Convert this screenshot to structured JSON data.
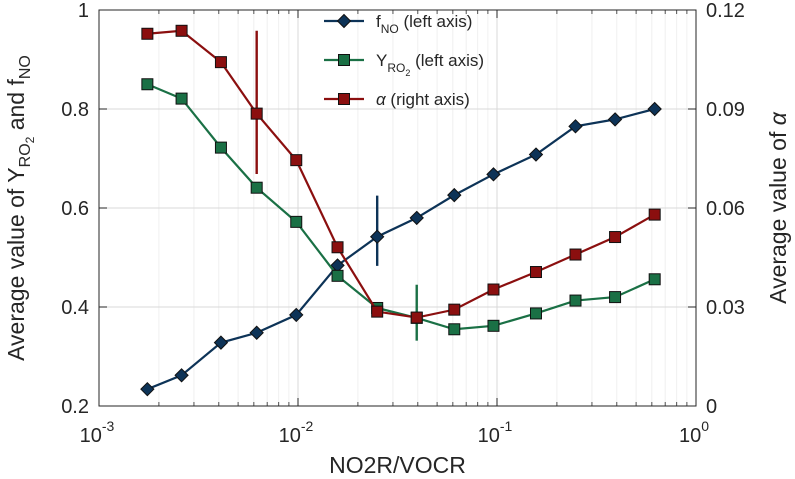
{
  "chart_data": {
    "type": "line",
    "xlabel": "NO2R/VOCR",
    "xscale": "log",
    "xlim": [
      0.001,
      1
    ],
    "x_ticks": [
      {
        "base": "10",
        "exp": "-3"
      },
      {
        "base": "10",
        "exp": "-2"
      },
      {
        "base": "10",
        "exp": "-1"
      },
      {
        "base": "10",
        "exp": "0"
      }
    ],
    "left_axis": {
      "label_parts": {
        "prefix": "Average value of Y",
        "sub1": "RO",
        "sub2": "2",
        "mid": " and f",
        "sub3": "NO"
      },
      "ylim": [
        0.2,
        1.0
      ],
      "ticks": [
        "0.2",
        "0.4",
        "0.6",
        "0.8",
        "1"
      ]
    },
    "right_axis": {
      "label_prefix": "Average value of ",
      "label_symbol": "α",
      "ylim": [
        0,
        0.12
      ],
      "ticks": [
        "0",
        "0.03",
        "0.06",
        "0.09",
        "0.12"
      ]
    },
    "grid": true,
    "legend_position": "top-center",
    "x": [
      0.00175,
      0.0026,
      0.0041,
      0.0062,
      0.0098,
      0.0158,
      0.025,
      0.0395,
      0.061,
      0.096,
      0.157,
      0.248,
      0.392,
      0.62
    ],
    "series": [
      {
        "name": "f_NO (left axis)",
        "legend": {
          "main": "f",
          "sub": "NO",
          "suffix": " (left axis)"
        },
        "axis": "left",
        "color": "#0d3357",
        "marker": "diamond",
        "values": [
          0.234,
          0.262,
          0.328,
          0.348,
          0.384,
          0.484,
          0.542,
          0.58,
          0.626,
          0.668,
          0.708,
          0.765,
          0.779,
          0.8
        ],
        "error_bars": [
          {
            "index": 6,
            "low": 0.483,
            "high": 0.625
          }
        ]
      },
      {
        "name": "Y_RO2 (left axis)",
        "legend": {
          "main": "Y",
          "sub": "RO",
          "sub2": "2",
          "suffix": " (left axis)"
        },
        "axis": "left",
        "color": "#1a7045",
        "marker": "square",
        "values": [
          0.85,
          0.821,
          0.722,
          0.641,
          0.572,
          0.463,
          0.398,
          0.378,
          0.355,
          0.362,
          0.387,
          0.413,
          0.42,
          0.456
        ],
        "error_bars": [
          {
            "index": 7,
            "low": 0.332,
            "high": 0.445
          }
        ]
      },
      {
        "name": "α (right axis)",
        "legend": {
          "main": "α",
          "suffix": " (right axis)"
        },
        "axis": "right",
        "color": "#8b0f0f",
        "marker": "square",
        "values": [
          0.1128,
          0.1137,
          0.1042,
          0.0886,
          0.0745,
          0.0481,
          0.0286,
          0.0268,
          0.0292,
          0.0353,
          0.0406,
          0.0459,
          0.0512,
          0.058
        ],
        "error_bars": [
          {
            "index": 3,
            "low": 0.0703,
            "high": 0.1137
          }
        ]
      }
    ]
  }
}
